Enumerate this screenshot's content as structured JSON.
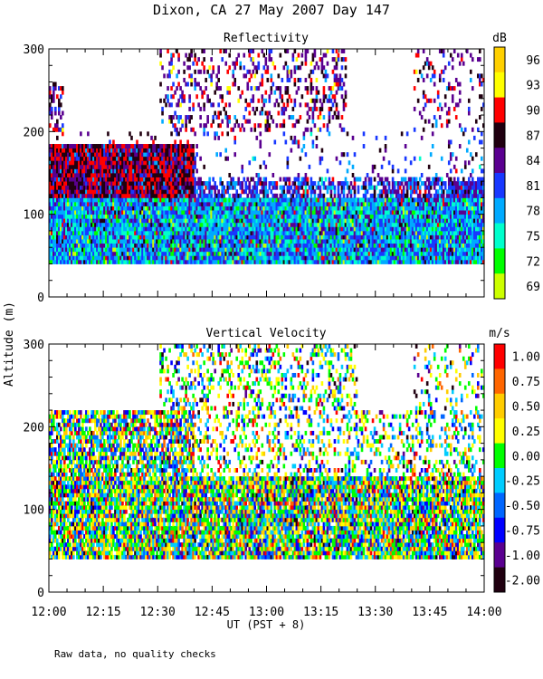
{
  "figure": {
    "title": "Dixon, CA 27 May 2007  Day 147",
    "ylabel": "Altitude (m)",
    "xlabel": "UT  (PST + 8)",
    "footnote": "Raw data, no quality checks",
    "xticks": [
      "12:00",
      "12:15",
      "12:30",
      "12:45",
      "13:00",
      "13:15",
      "13:30",
      "13:45",
      "14:00"
    ],
    "yticks": [
      "0",
      "100",
      "200",
      "300"
    ]
  },
  "chart_data": [
    {
      "type": "heatmap",
      "title": "Reflectivity",
      "units": "dB",
      "xlabel": "UT  (PST + 8)",
      "ylabel": "Altitude (m)",
      "xrange_minutes": [
        0,
        120
      ],
      "ylim": [
        0,
        300
      ],
      "data_ylim": [
        40,
        300
      ],
      "colorbar_labels": [
        "96",
        "93",
        "90",
        "87",
        "84",
        "81",
        "78",
        "75",
        "72",
        "69"
      ],
      "colorbar_colors": [
        "#ffd000",
        "#ffff00",
        "#ff0000",
        "#200010",
        "#5a0090",
        "#1838ff",
        "#00aaff",
        "#00ffcc",
        "#00ff00",
        "#ccff00"
      ],
      "note": "Near-surface 40-120 m dominated by 75-81 dB; 100-200 m layer 84-90 dB strongest 12:00-12:40; sparse 84-90 dB echoes above 220 m after 12:35"
    },
    {
      "type": "heatmap",
      "title": "Vertical Velocity",
      "units": "m/s",
      "xlabel": "UT  (PST + 8)",
      "ylabel": "Altitude (m)",
      "xrange_minutes": [
        0,
        120
      ],
      "ylim": [
        0,
        300
      ],
      "data_ylim": [
        40,
        300
      ],
      "colorbar_labels": [
        "1.00",
        "0.75",
        "0.50",
        "0.25",
        "0.00",
        "-0.25",
        "-0.50",
        "-0.75",
        "-1.00",
        "-2.00"
      ],
      "colorbar_colors": [
        "#ff0000",
        "#ff6600",
        "#ffcc00",
        "#ffff00",
        "#00ff00",
        "#00ccff",
        "#0066ff",
        "#0000ff",
        "#5a0090",
        "#200010"
      ],
      "note": "Mixed velocities between -1 and +1 m/s; mostly -0.5 to +0.5 m/s near surface"
    }
  ]
}
